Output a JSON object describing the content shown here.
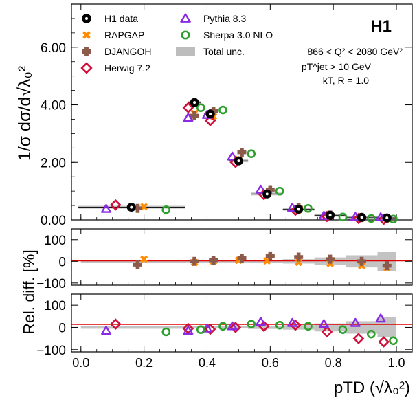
{
  "figure": {
    "experiment_label": "H1",
    "ylabel_main": "1/σ dσ/d√λ₀²",
    "ylabel_ratio": "Rel. diff. [%]",
    "xlabel": "pTD (√λ₀²)"
  },
  "annotations": {
    "q2_range": "866 < Q² < 2080 GeV²",
    "pt_cut": "pT^jet > 10 GeV",
    "jet_algo": "kT, R = 1.0"
  },
  "colors": {
    "data": "#000000",
    "rapgap": "#ff8c00",
    "djangoh": "#8b5a4a",
    "herwig": "#d0103a",
    "pythia": "#8a2be2",
    "sherpa": "#2ca02c",
    "unc": "#bdbdbd",
    "ratio_line": "#e00000"
  },
  "chart_data": [
    {
      "type": "scatter",
      "panel": "main",
      "ylabel": "1/σ dσ/d√λ₀²",
      "xlim": [
        -0.03,
        1.05
      ],
      "ylim": [
        0,
        7.5
      ],
      "yticks": [
        "0.00",
        "2.00",
        "4.00",
        "6.00"
      ],
      "ytick_values": [
        0,
        2,
        4,
        6
      ],
      "legend": [
        "H1 data",
        "RAPGAP",
        "DJANGOH",
        "Herwig 7.2",
        "Pythia 8.3",
        "Sherpa 3.0 NLO",
        "Total unc."
      ],
      "bin_edges": [
        0.0,
        0.33,
        0.42,
        0.47,
        0.53,
        0.64,
        0.74,
        0.84,
        0.94,
        1.0
      ],
      "series": [
        {
          "name": "H1 data",
          "marker": "data",
          "color": "#000000",
          "x": [
            0.16,
            0.36,
            0.41,
            0.5,
            0.59,
            0.69,
            0.79,
            0.89,
            0.97
          ],
          "y": [
            0.44,
            4.08,
            3.68,
            2.05,
            0.9,
            0.37,
            0.16,
            0.09,
            0.07
          ],
          "xerr": [
            0.17,
            0.02,
            0.02,
            0.03,
            0.05,
            0.05,
            0.05,
            0.05,
            0.03
          ]
        },
        {
          "name": "RAPGAP",
          "marker": "x",
          "color": "#ff8c00",
          "x": [
            0.2,
            0.36,
            0.42,
            0.5,
            0.59,
            0.69,
            0.79,
            0.89,
            0.97
          ],
          "y": [
            0.46,
            3.7,
            3.6,
            2.1,
            0.9,
            0.35,
            0.15,
            0.07,
            0.05
          ]
        },
        {
          "name": "DJANGOH",
          "marker": "plus",
          "color": "#8b5a4a",
          "x": [
            0.18,
            0.36,
            0.42,
            0.51,
            0.6,
            0.69,
            0.79,
            0.89,
            0.97
          ],
          "y": [
            0.4,
            3.62,
            3.78,
            2.35,
            1.05,
            0.42,
            0.17,
            0.08,
            0.05
          ]
        },
        {
          "name": "Herwig 7.2",
          "marker": "diamond",
          "color": "#d0103a",
          "x": [
            0.11,
            0.34,
            0.41,
            0.49,
            0.58,
            0.68,
            0.78,
            0.88,
            0.96
          ],
          "y": [
            0.52,
            3.9,
            3.45,
            2.0,
            0.88,
            0.33,
            0.12,
            0.05,
            0.02
          ]
        },
        {
          "name": "Pythia 8.3",
          "marker": "triangle",
          "color": "#8a2be2",
          "x": [
            0.08,
            0.34,
            0.4,
            0.48,
            0.57,
            0.67,
            0.77,
            0.87,
            0.95
          ],
          "y": [
            0.38,
            3.55,
            3.65,
            2.2,
            1.05,
            0.42,
            0.14,
            0.1,
            0.09
          ]
        },
        {
          "name": "Sherpa 3.0 NLO",
          "marker": "circle",
          "color": "#2ca02c",
          "x": [
            0.27,
            0.38,
            0.45,
            0.54,
            0.63,
            0.72,
            0.83,
            0.92,
            0.99
          ],
          "y": [
            0.35,
            3.9,
            3.82,
            2.3,
            1.0,
            0.4,
            0.1,
            0.05,
            0.03
          ]
        }
      ]
    },
    {
      "type": "scatter",
      "panel": "ratio_rapgap_djangoh",
      "ylabel": "Rel. diff. [%]",
      "ylim": [
        -110,
        150
      ],
      "yticks": [
        "100",
        "0",
        "−100"
      ],
      "ytick_values": [
        100,
        0,
        -100
      ],
      "unc_bands": [
        {
          "x0": 0.0,
          "x1": 0.33,
          "half": 6
        },
        {
          "x0": 0.33,
          "x1": 0.42,
          "half": 5
        },
        {
          "x0": 0.42,
          "x1": 0.47,
          "half": 5
        },
        {
          "x0": 0.47,
          "x1": 0.53,
          "half": 5
        },
        {
          "x0": 0.53,
          "x1": 0.64,
          "half": 7
        },
        {
          "x0": 0.64,
          "x1": 0.74,
          "half": 10
        },
        {
          "x0": 0.74,
          "x1": 0.84,
          "half": 18
        },
        {
          "x0": 0.84,
          "x1": 0.94,
          "half": 28
        },
        {
          "x0": 0.94,
          "x1": 1.0,
          "half": 45
        }
      ],
      "series": [
        {
          "name": "RAPGAP",
          "marker": "x",
          "color": "#ff8c00",
          "x": [
            0.2,
            0.36,
            0.42,
            0.5,
            0.59,
            0.69,
            0.79,
            0.89,
            0.97
          ],
          "y": [
            10,
            -5,
            0,
            5,
            2,
            -4,
            -10,
            -20,
            -30
          ]
        },
        {
          "name": "DJANGOH",
          "marker": "plus",
          "color": "#8b5a4a",
          "x": [
            0.18,
            0.36,
            0.42,
            0.51,
            0.6,
            0.69,
            0.79,
            0.89,
            0.97
          ],
          "y": [
            -15,
            0,
            5,
            15,
            25,
            20,
            10,
            0,
            -20
          ]
        }
      ]
    },
    {
      "type": "scatter",
      "panel": "ratio_herwig_pythia_sherpa",
      "ylabel": "Rel. diff. [%]",
      "xlabel": "pTD (√λ₀²)",
      "ylim": [
        -110,
        150
      ],
      "yticks": [
        "100",
        "0",
        "−100"
      ],
      "ytick_values": [
        100,
        0,
        -100
      ],
      "xticks": [
        "0.0",
        "0.2",
        "0.4",
        "0.6",
        "0.8",
        "1.0"
      ],
      "xtick_values": [
        0.0,
        0.2,
        0.4,
        0.6,
        0.8,
        1.0
      ],
      "unc_bands": [
        {
          "x0": 0.0,
          "x1": 0.33,
          "half": 6
        },
        {
          "x0": 0.33,
          "x1": 0.42,
          "half": 5
        },
        {
          "x0": 0.42,
          "x1": 0.47,
          "half": 5
        },
        {
          "x0": 0.47,
          "x1": 0.53,
          "half": 5
        },
        {
          "x0": 0.53,
          "x1": 0.64,
          "half": 7
        },
        {
          "x0": 0.64,
          "x1": 0.74,
          "half": 10
        },
        {
          "x0": 0.74,
          "x1": 0.84,
          "half": 18
        },
        {
          "x0": 0.84,
          "x1": 0.94,
          "half": 28
        },
        {
          "x0": 0.94,
          "x1": 1.0,
          "half": 45
        }
      ],
      "series": [
        {
          "name": "Herwig 7.2",
          "marker": "diamond",
          "color": "#d0103a",
          "x": [
            0.11,
            0.34,
            0.41,
            0.49,
            0.58,
            0.68,
            0.78,
            0.88,
            0.96
          ],
          "y": [
            15,
            -5,
            -8,
            0,
            5,
            10,
            -20,
            -50,
            -65
          ]
        },
        {
          "name": "Pythia 8.3",
          "marker": "triangle",
          "color": "#8a2be2",
          "x": [
            0.08,
            0.34,
            0.4,
            0.48,
            0.57,
            0.67,
            0.77,
            0.87,
            0.95
          ],
          "y": [
            -15,
            -15,
            -5,
            5,
            25,
            20,
            15,
            20,
            40
          ]
        },
        {
          "name": "Sherpa 3.0 NLO",
          "marker": "circle",
          "color": "#2ca02c",
          "x": [
            0.27,
            0.38,
            0.45,
            0.54,
            0.63,
            0.72,
            0.83,
            0.92,
            0.99
          ],
          "y": [
            -20,
            -10,
            5,
            15,
            10,
            5,
            -10,
            -30,
            -60
          ]
        }
      ]
    }
  ]
}
